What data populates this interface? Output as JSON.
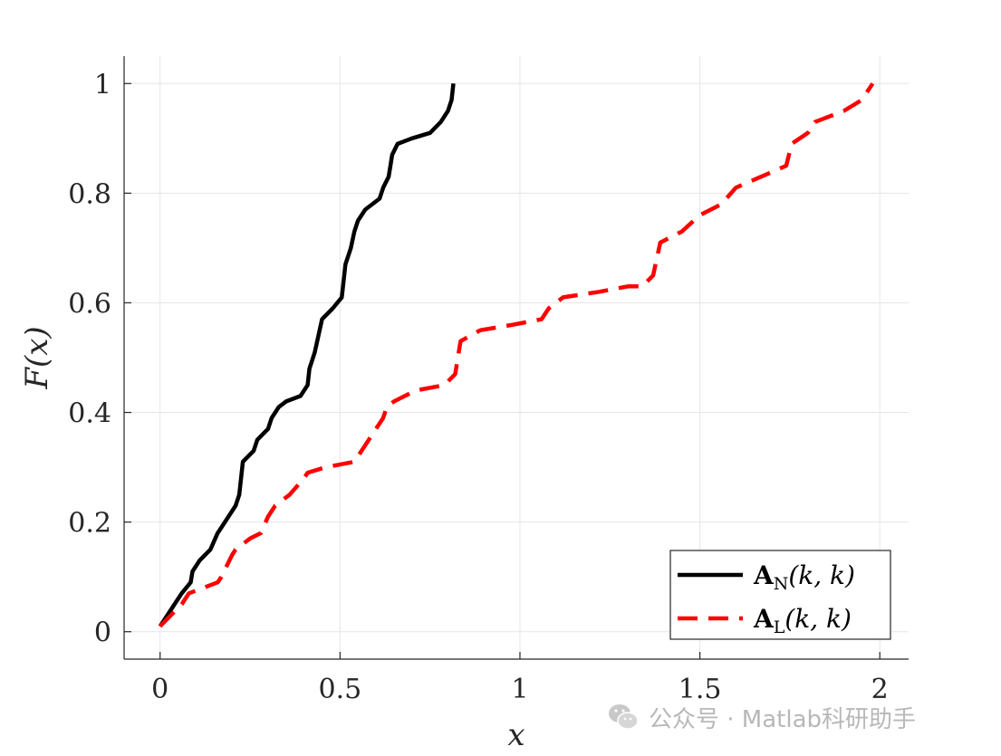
{
  "chart_data": {
    "type": "line",
    "xlabel": "x",
    "ylabel": "F(x)",
    "xlim": [
      -0.1,
      2.08
    ],
    "ylim": [
      -0.05,
      1.05
    ],
    "xticks": [
      0,
      0.5,
      1,
      1.5,
      2
    ],
    "xtick_labels": [
      "0",
      "0.5",
      "1",
      "1.5",
      "2"
    ],
    "yticks": [
      0,
      0.2,
      0.4,
      0.6,
      0.8,
      1
    ],
    "ytick_labels": [
      "0",
      "0.2",
      "0.4",
      "0.6",
      "0.8",
      "1"
    ],
    "grid": true,
    "legend_position": "bottom-right",
    "series": [
      {
        "name": "A_N(k,k)",
        "legend_main": "A",
        "legend_sub": "N",
        "legend_args": "(k, k)",
        "color": "#000000",
        "style": "solid",
        "points": [
          [
            0,
            0.01
          ],
          [
            0.02,
            0.03
          ],
          [
            0.04,
            0.05
          ],
          [
            0.06,
            0.07
          ],
          [
            0.085,
            0.09
          ],
          [
            0.09,
            0.11
          ],
          [
            0.11,
            0.13
          ],
          [
            0.14,
            0.15
          ],
          [
            0.16,
            0.18
          ],
          [
            0.17,
            0.19
          ],
          [
            0.19,
            0.21
          ],
          [
            0.21,
            0.23
          ],
          [
            0.22,
            0.25
          ],
          [
            0.225,
            0.28
          ],
          [
            0.23,
            0.31
          ],
          [
            0.26,
            0.33
          ],
          [
            0.27,
            0.35
          ],
          [
            0.3,
            0.37
          ],
          [
            0.31,
            0.39
          ],
          [
            0.33,
            0.41
          ],
          [
            0.35,
            0.42
          ],
          [
            0.39,
            0.43
          ],
          [
            0.41,
            0.45
          ],
          [
            0.415,
            0.48
          ],
          [
            0.42,
            0.49
          ],
          [
            0.43,
            0.51
          ],
          [
            0.44,
            0.54
          ],
          [
            0.45,
            0.57
          ],
          [
            0.48,
            0.59
          ],
          [
            0.505,
            0.61
          ],
          [
            0.51,
            0.64
          ],
          [
            0.515,
            0.67
          ],
          [
            0.53,
            0.7
          ],
          [
            0.54,
            0.73
          ],
          [
            0.55,
            0.75
          ],
          [
            0.57,
            0.77
          ],
          [
            0.61,
            0.79
          ],
          [
            0.62,
            0.81
          ],
          [
            0.635,
            0.83
          ],
          [
            0.64,
            0.85
          ],
          [
            0.645,
            0.87
          ],
          [
            0.66,
            0.89
          ],
          [
            0.7,
            0.9
          ],
          [
            0.75,
            0.91
          ],
          [
            0.78,
            0.93
          ],
          [
            0.8,
            0.95
          ],
          [
            0.81,
            0.97
          ],
          [
            0.815,
            1.0
          ]
        ]
      },
      {
        "name": "A_L(k,k)",
        "legend_main": "A",
        "legend_sub": "L",
        "legend_args": "(k, k)",
        "color": "#ff0000",
        "style": "dashed",
        "points": [
          [
            0,
            0.01
          ],
          [
            0.03,
            0.03
          ],
          [
            0.06,
            0.05
          ],
          [
            0.07,
            0.06
          ],
          [
            0.08,
            0.07
          ],
          [
            0.12,
            0.08
          ],
          [
            0.16,
            0.09
          ],
          [
            0.17,
            0.1
          ],
          [
            0.2,
            0.14
          ],
          [
            0.21,
            0.15
          ],
          [
            0.25,
            0.17
          ],
          [
            0.28,
            0.18
          ],
          [
            0.3,
            0.21
          ],
          [
            0.32,
            0.23
          ],
          [
            0.36,
            0.25
          ],
          [
            0.4,
            0.28
          ],
          [
            0.41,
            0.29
          ],
          [
            0.46,
            0.3
          ],
          [
            0.54,
            0.31
          ],
          [
            0.58,
            0.35
          ],
          [
            0.62,
            0.39
          ],
          [
            0.63,
            0.41
          ],
          [
            0.65,
            0.42
          ],
          [
            0.71,
            0.44
          ],
          [
            0.79,
            0.45
          ],
          [
            0.82,
            0.47
          ],
          [
            0.835,
            0.53
          ],
          [
            0.89,
            0.55
          ],
          [
            0.98,
            0.56
          ],
          [
            1.06,
            0.57
          ],
          [
            1.08,
            0.59
          ],
          [
            1.12,
            0.61
          ],
          [
            1.22,
            0.62
          ],
          [
            1.3,
            0.63
          ],
          [
            1.34,
            0.63
          ],
          [
            1.37,
            0.65
          ],
          [
            1.39,
            0.71
          ],
          [
            1.45,
            0.73
          ],
          [
            1.5,
            0.76
          ],
          [
            1.56,
            0.78
          ],
          [
            1.6,
            0.81
          ],
          [
            1.67,
            0.83
          ],
          [
            1.74,
            0.85
          ],
          [
            1.755,
            0.89
          ],
          [
            1.8,
            0.91
          ],
          [
            1.82,
            0.93
          ],
          [
            1.9,
            0.95
          ],
          [
            1.95,
            0.97
          ],
          [
            1.98,
            1.0
          ]
        ]
      }
    ]
  },
  "watermark": {
    "text": "公众号 · Matlab科研助手",
    "icon": "wechat-icon"
  }
}
